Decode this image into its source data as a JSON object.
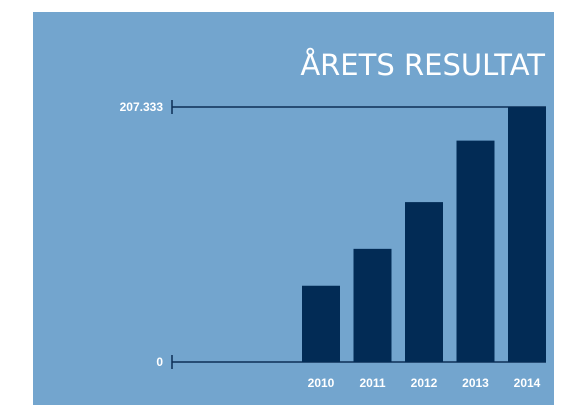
{
  "chart_data": {
    "type": "bar",
    "title": "ÅRETS RESULTAT",
    "categories": [
      "2010",
      "2011",
      "2012",
      "2013",
      "2014"
    ],
    "values": [
      62,
      92,
      130,
      180,
      207.333
    ],
    "ylim": [
      0,
      207.333
    ],
    "y_tick_labels": [
      "0",
      "207.333"
    ],
    "grid": false,
    "legend": "none",
    "colors": {
      "background": "#73a5ce",
      "bar": "#022b55",
      "axis": "#0d2e57",
      "text": "#ffffff"
    }
  }
}
